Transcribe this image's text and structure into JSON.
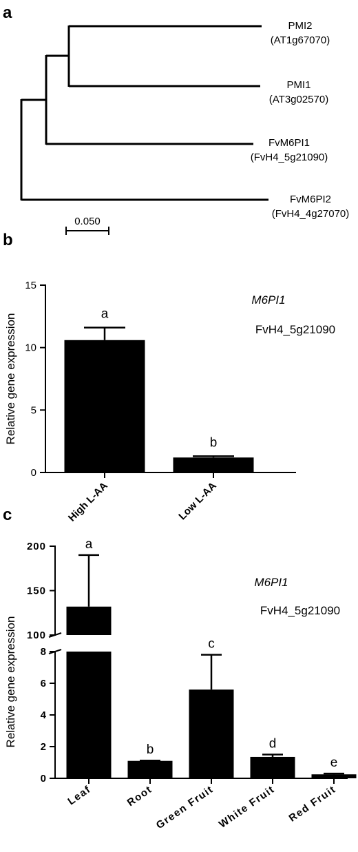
{
  "figure": {
    "panels": [
      {
        "letter": "a",
        "type": "phylogenetic-tree",
        "leaves": [
          {
            "name": "PMI2",
            "accession": "(AT1g67070)"
          },
          {
            "name": "PMI1",
            "accession": "(AT3g02570)"
          },
          {
            "name": "FvM6PI1",
            "accession": "(FvH4_5g21090)"
          },
          {
            "name": "FvM6PI2",
            "accession": "(FvH4_4g27070)"
          }
        ],
        "scale_bar_label": "0.050"
      },
      {
        "letter": "b"
      },
      {
        "letter": "c"
      }
    ]
  },
  "chart_data": [
    {
      "panel": "b",
      "type": "bar",
      "categories": [
        "High L-AA",
        "Low L-AA"
      ],
      "values": [
        10.6,
        1.2
      ],
      "errors": [
        1.0,
        0.1
      ],
      "significance": [
        "a",
        "b"
      ],
      "ylabel": "Relative gene expression",
      "ylim": [
        0,
        15
      ],
      "yticks": [
        "0",
        "5",
        "10",
        "15"
      ],
      "annotation_gene": "M6PI1",
      "annotation_id": "FvH4_5g21090"
    },
    {
      "panel": "c",
      "type": "bar",
      "axis": "broken",
      "categories": [
        "Leaf",
        "Root",
        "Green Fruit",
        "White Fruit",
        "Red Fruit"
      ],
      "values": [
        132,
        1.1,
        5.6,
        1.35,
        0.25
      ],
      "errors": [
        58,
        0.02,
        2.2,
        0.15,
        0.05
      ],
      "significance": [
        "a",
        "b",
        "c",
        "d",
        "e"
      ],
      "ylabel": "Relative gene expression",
      "lower_range": [
        0,
        8
      ],
      "upper_range": [
        100,
        200
      ],
      "yticks_lower": [
        "0",
        "2",
        "4",
        "6",
        "8"
      ],
      "yticks_upper": [
        "100",
        "150",
        "200"
      ],
      "annotation_gene": "M6PI1",
      "annotation_id": "FvH4_5g21090"
    }
  ]
}
